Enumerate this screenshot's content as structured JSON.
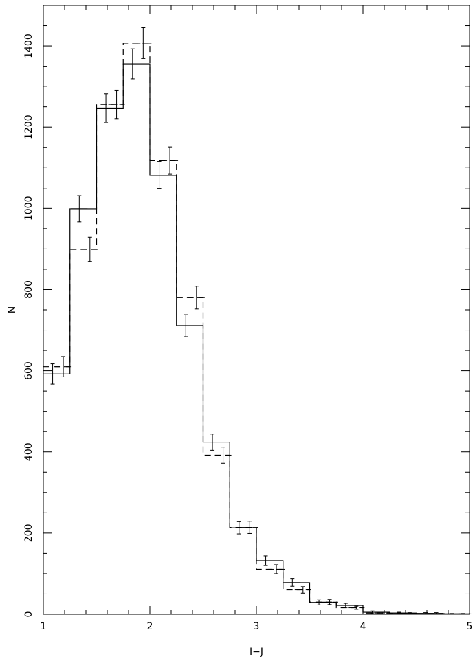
{
  "chart_data": {
    "type": "histogram",
    "title": "",
    "xlabel": "I−J",
    "ylabel": "N",
    "xlim": [
      1,
      5
    ],
    "ylim": [
      0,
      1500
    ],
    "x_ticks": [
      1,
      2,
      3,
      4,
      5
    ],
    "y_ticks": [
      0,
      200,
      400,
      600,
      800,
      1000,
      1200,
      1400
    ],
    "x_ticks_labels": [
      "1",
      "2",
      "3",
      "4",
      "5"
    ],
    "y_ticks_labels": [
      "0",
      "200",
      "400",
      "600",
      "800",
      "1000",
      "1200",
      "1400"
    ],
    "grid": false,
    "bin_edges": [
      1.0,
      1.25,
      1.5,
      1.75,
      2.0,
      2.25,
      2.5,
      2.75,
      3.0,
      3.25,
      3.5,
      3.75,
      4.0,
      4.25,
      4.5,
      4.75,
      5.0
    ],
    "series": [
      {
        "line_style": "solid",
        "values": [
          592,
          999,
          1247,
          1356,
          1082,
          711,
          424,
          213,
          132,
          78,
          29,
          22,
          5,
          3,
          2,
          1
        ],
        "errors": [
          25,
          32,
          35,
          37,
          33,
          27,
          20,
          15,
          12,
          9,
          6,
          5,
          3,
          2,
          2,
          1
        ]
      },
      {
        "line_style": "dashed",
        "values": [
          610,
          899,
          1256,
          1407,
          1118,
          780,
          392,
          214,
          111,
          60,
          30,
          16,
          3,
          2,
          2,
          1
        ],
        "errors": [
          25,
          30,
          35,
          38,
          33,
          28,
          20,
          15,
          11,
          8,
          6,
          4,
          2,
          2,
          2,
          1
        ]
      }
    ]
  }
}
